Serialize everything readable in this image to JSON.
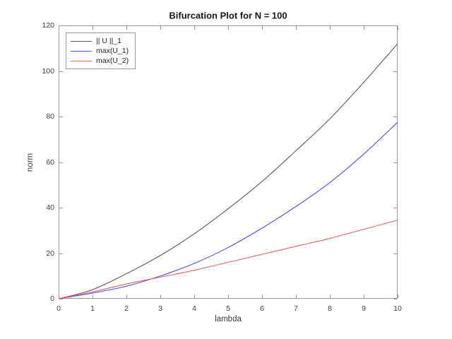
{
  "figure": {
    "background": "#ffffff"
  },
  "chart_data": {
    "type": "line",
    "title": "Bifurcation Plot for N = 100",
    "xlabel": "lambda",
    "ylabel": "norm",
    "xlim": [
      0,
      10
    ],
    "ylim": [
      0,
      120
    ],
    "xticks": [
      0,
      1,
      2,
      3,
      4,
      5,
      6,
      7,
      8,
      9,
      10
    ],
    "yticks": [
      0,
      20,
      40,
      60,
      80,
      100,
      120
    ],
    "grid": false,
    "legend_position": "top-left",
    "axis_color": "#989898",
    "tick_text_color": "#3d3d3d",
    "x": [
      0,
      1,
      2,
      3,
      4,
      5,
      6,
      7,
      8,
      9,
      10
    ],
    "series": [
      {
        "name": "|| U ||_1",
        "color": "#5a5a5a",
        "values": [
          0,
          4,
          11,
          19,
          28.5,
          39.5,
          51.5,
          65,
          79,
          95,
          112
        ]
      },
      {
        "name": "max(U_1)",
        "color": "#4d4df0",
        "values": [
          0,
          2.5,
          5.5,
          10,
          15.5,
          22.5,
          31,
          40.5,
          51,
          63.5,
          77.5
        ]
      },
      {
        "name": "max(U_2)",
        "color": "#ef5f5f",
        "values": [
          0,
          3,
          6.5,
          9.5,
          12.5,
          16,
          19.5,
          23,
          26.5,
          30.5,
          34.5
        ]
      }
    ]
  }
}
